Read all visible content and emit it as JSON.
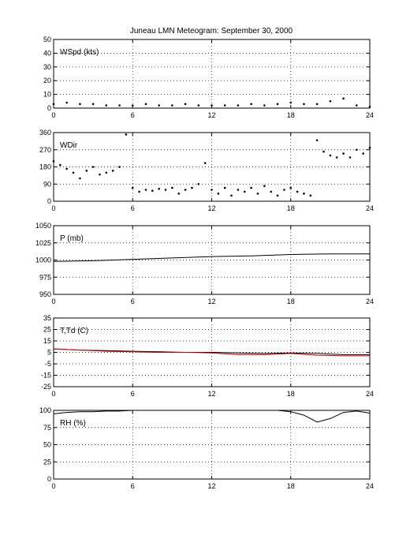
{
  "title": "Juneau LMN Meteogram: September 30, 2000",
  "chart_data": [
    {
      "type": "scatter",
      "label": "WSpd (kts)",
      "ylim": [
        0,
        50
      ],
      "yticks": [
        0,
        10,
        20,
        30,
        40,
        50
      ],
      "xlim": [
        0,
        24
      ],
      "xticks": [
        0,
        6,
        12,
        18,
        24
      ],
      "grid": true,
      "series": [
        {
          "color": "#000000",
          "x": [
            0,
            1,
            2,
            3,
            4,
            5,
            6,
            7,
            8,
            9,
            10,
            11,
            12,
            13,
            14,
            15,
            16,
            17,
            18,
            19,
            20,
            21,
            22,
            23,
            24
          ],
          "y": [
            3,
            4,
            3,
            3,
            2,
            2,
            2,
            3,
            2,
            2,
            3,
            2,
            2,
            2,
            2,
            3,
            2,
            3,
            4,
            3,
            3,
            5,
            7,
            2,
            1
          ]
        }
      ]
    },
    {
      "type": "scatter",
      "label": "WDir",
      "ylim": [
        0,
        360
      ],
      "yticks": [
        0,
        90,
        180,
        270,
        360
      ],
      "xlim": [
        0,
        24
      ],
      "xticks": [
        0,
        6,
        12,
        18,
        24
      ],
      "grid": true,
      "series": [
        {
          "color": "#000000",
          "x": [
            0,
            0.5,
            1,
            1.5,
            2,
            2.5,
            3,
            3.5,
            4,
            4.5,
            5,
            5.5,
            6,
            6.5,
            7,
            7.5,
            8,
            8.5,
            9,
            9.5,
            10,
            10.5,
            11,
            11.5,
            12,
            12.5,
            13,
            13.5,
            14,
            14.5,
            15,
            15.5,
            16,
            16.5,
            17,
            17.5,
            18,
            18.5,
            19,
            19.5,
            20,
            20.5,
            21,
            21.5,
            22,
            22.5,
            23,
            23.5,
            24
          ],
          "y": [
            210,
            190,
            170,
            150,
            120,
            160,
            180,
            140,
            150,
            160,
            180,
            350,
            70,
            50,
            60,
            55,
            65,
            60,
            70,
            40,
            60,
            70,
            90,
            200,
            60,
            40,
            70,
            30,
            60,
            50,
            70,
            40,
            80,
            50,
            30,
            60,
            70,
            50,
            40,
            30,
            320,
            260,
            240,
            230,
            250,
            230,
            270,
            250,
            280
          ]
        }
      ]
    },
    {
      "type": "line",
      "label": "P (mb)",
      "ylim": [
        950,
        1050
      ],
      "yticks": [
        950,
        975,
        1000,
        1025,
        1050
      ],
      "xlim": [
        0,
        24
      ],
      "xticks": [
        0,
        6,
        12,
        18,
        24
      ],
      "grid": true,
      "series": [
        {
          "color": "#000000",
          "x": [
            0,
            3,
            6,
            9,
            12,
            15,
            18,
            21,
            24
          ],
          "y": [
            998,
            999,
            1001,
            1003,
            1005,
            1006,
            1008,
            1009,
            1009
          ]
        }
      ]
    },
    {
      "type": "line",
      "label": "T,Td (C)",
      "ylim": [
        -25,
        35
      ],
      "yticks": [
        -25,
        -15,
        -5,
        5,
        15,
        25,
        35
      ],
      "xlim": [
        0,
        24
      ],
      "xticks": [
        0,
        6,
        12,
        18,
        24
      ],
      "grid": true,
      "series": [
        {
          "color": "#000000",
          "x": [
            0,
            2,
            4,
            6,
            8,
            10,
            12,
            14,
            16,
            18,
            20,
            22,
            24
          ],
          "y": [
            8,
            7,
            6.5,
            6,
            5.5,
            5,
            5,
            4.5,
            4,
            4.5,
            4,
            3,
            3
          ]
        },
        {
          "color": "#cc0000",
          "x": [
            0,
            2,
            4,
            6,
            8,
            10,
            12,
            14,
            16,
            18,
            20,
            22,
            24
          ],
          "y": [
            8,
            7,
            6,
            5.5,
            5,
            5,
            4.5,
            3,
            3,
            4,
            2.5,
            2,
            2
          ]
        }
      ]
    },
    {
      "type": "line",
      "label": "RH (%)",
      "ylim": [
        0,
        100
      ],
      "yticks": [
        0,
        25,
        50,
        75,
        100
      ],
      "xlim": [
        0,
        24
      ],
      "xticks": [
        0,
        6,
        12,
        18,
        24
      ],
      "grid": true,
      "series": [
        {
          "color": "#000000",
          "x": [
            0,
            1,
            2,
            3,
            4,
            5,
            6,
            8,
            10,
            12,
            14,
            16,
            17,
            18,
            19,
            20,
            21,
            22,
            23,
            24
          ],
          "y": [
            95,
            97,
            98,
            98,
            99,
            99,
            100,
            100,
            100,
            100,
            100,
            100,
            100,
            98,
            93,
            83,
            88,
            97,
            99,
            96
          ]
        }
      ]
    }
  ]
}
